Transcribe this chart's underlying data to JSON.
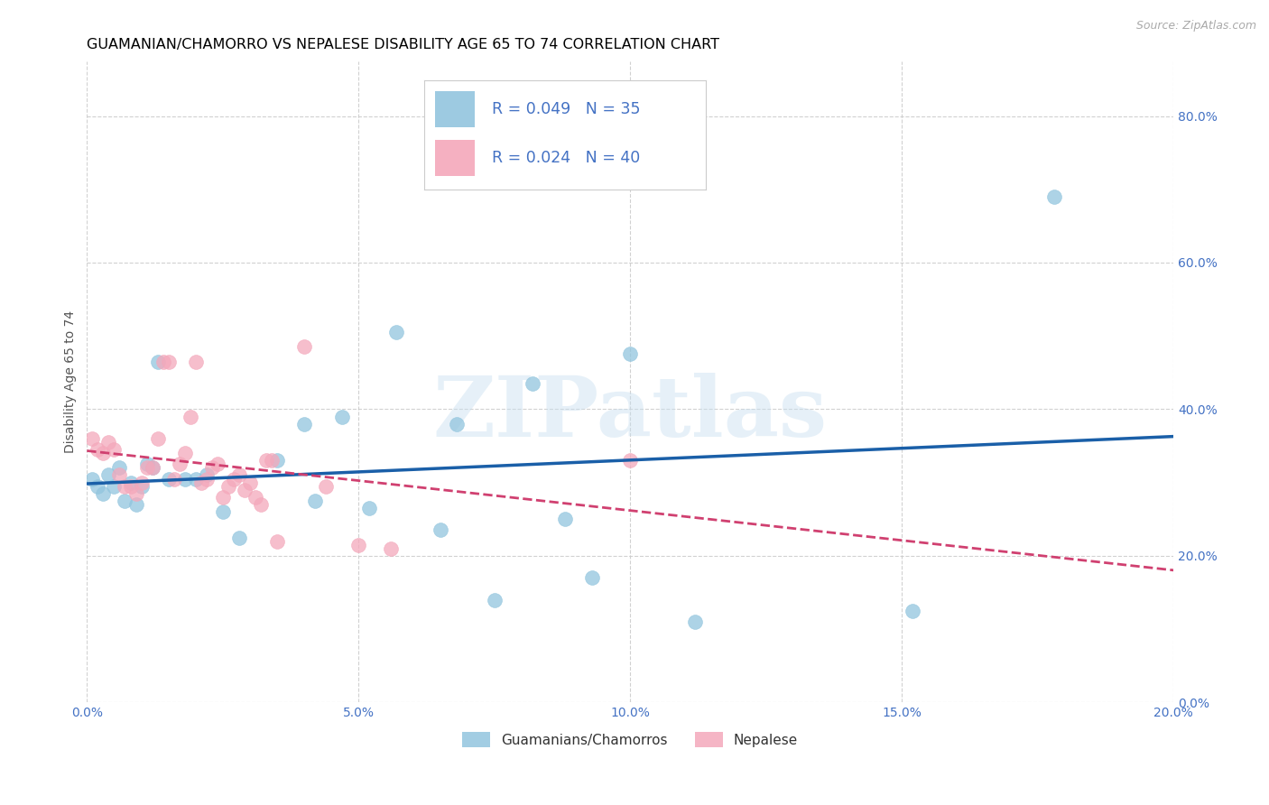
{
  "title": "GUAMANIAN/CHAMORRO VS NEPALESE DISABILITY AGE 65 TO 74 CORRELATION CHART",
  "source": "Source: ZipAtlas.com",
  "xlabel": "",
  "ylabel": "Disability Age 65 to 74",
  "xlim": [
    0.0,
    0.2
  ],
  "ylim": [
    0.0,
    0.875
  ],
  "xticks": [
    0.0,
    0.05,
    0.1,
    0.15,
    0.2
  ],
  "yticks": [
    0.0,
    0.2,
    0.4,
    0.6,
    0.8
  ],
  "xtick_labels": [
    "0.0%",
    "5.0%",
    "10.0%",
    "15.0%",
    "20.0%"
  ],
  "ytick_labels": [
    "0.0%",
    "20.0%",
    "40.0%",
    "60.0%",
    "80.0%"
  ],
  "blue_color": "#92c5de",
  "pink_color": "#f4a8bb",
  "trend_blue": "#1a5fa8",
  "trend_pink": "#d04070",
  "watermark": "ZIPatlas",
  "blue_x": [
    0.001,
    0.002,
    0.003,
    0.004,
    0.005,
    0.006,
    0.007,
    0.008,
    0.009,
    0.01,
    0.011,
    0.012,
    0.013,
    0.015,
    0.018,
    0.02,
    0.022,
    0.025,
    0.028,
    0.035,
    0.04,
    0.042,
    0.047,
    0.052,
    0.057,
    0.065,
    0.068,
    0.075,
    0.082,
    0.088,
    0.093,
    0.1,
    0.112,
    0.152,
    0.178
  ],
  "blue_y": [
    0.305,
    0.295,
    0.285,
    0.31,
    0.295,
    0.32,
    0.275,
    0.3,
    0.27,
    0.295,
    0.325,
    0.32,
    0.465,
    0.305,
    0.305,
    0.305,
    0.31,
    0.26,
    0.225,
    0.33,
    0.38,
    0.275,
    0.39,
    0.265,
    0.505,
    0.235,
    0.38,
    0.14,
    0.435,
    0.25,
    0.17,
    0.475,
    0.11,
    0.125,
    0.69
  ],
  "pink_x": [
    0.001,
    0.002,
    0.003,
    0.004,
    0.005,
    0.006,
    0.007,
    0.008,
    0.009,
    0.01,
    0.011,
    0.012,
    0.013,
    0.014,
    0.015,
    0.016,
    0.017,
    0.018,
    0.019,
    0.02,
    0.021,
    0.022,
    0.023,
    0.024,
    0.025,
    0.026,
    0.027,
    0.028,
    0.029,
    0.03,
    0.031,
    0.032,
    0.033,
    0.034,
    0.035,
    0.04,
    0.044,
    0.05,
    0.056,
    0.1
  ],
  "pink_y": [
    0.36,
    0.345,
    0.34,
    0.355,
    0.345,
    0.31,
    0.295,
    0.295,
    0.285,
    0.3,
    0.32,
    0.32,
    0.36,
    0.465,
    0.465,
    0.305,
    0.325,
    0.34,
    0.39,
    0.465,
    0.3,
    0.305,
    0.32,
    0.325,
    0.28,
    0.295,
    0.305,
    0.31,
    0.29,
    0.3,
    0.28,
    0.27,
    0.33,
    0.33,
    0.22,
    0.485,
    0.295,
    0.215,
    0.21,
    0.33
  ],
  "background_color": "#ffffff",
  "grid_color": "#cccccc",
  "axis_color": "#4472c4",
  "title_color": "#000000",
  "title_fontsize": 11.5,
  "label_fontsize": 10,
  "tick_fontsize": 10,
  "legend_fontsize": 13
}
